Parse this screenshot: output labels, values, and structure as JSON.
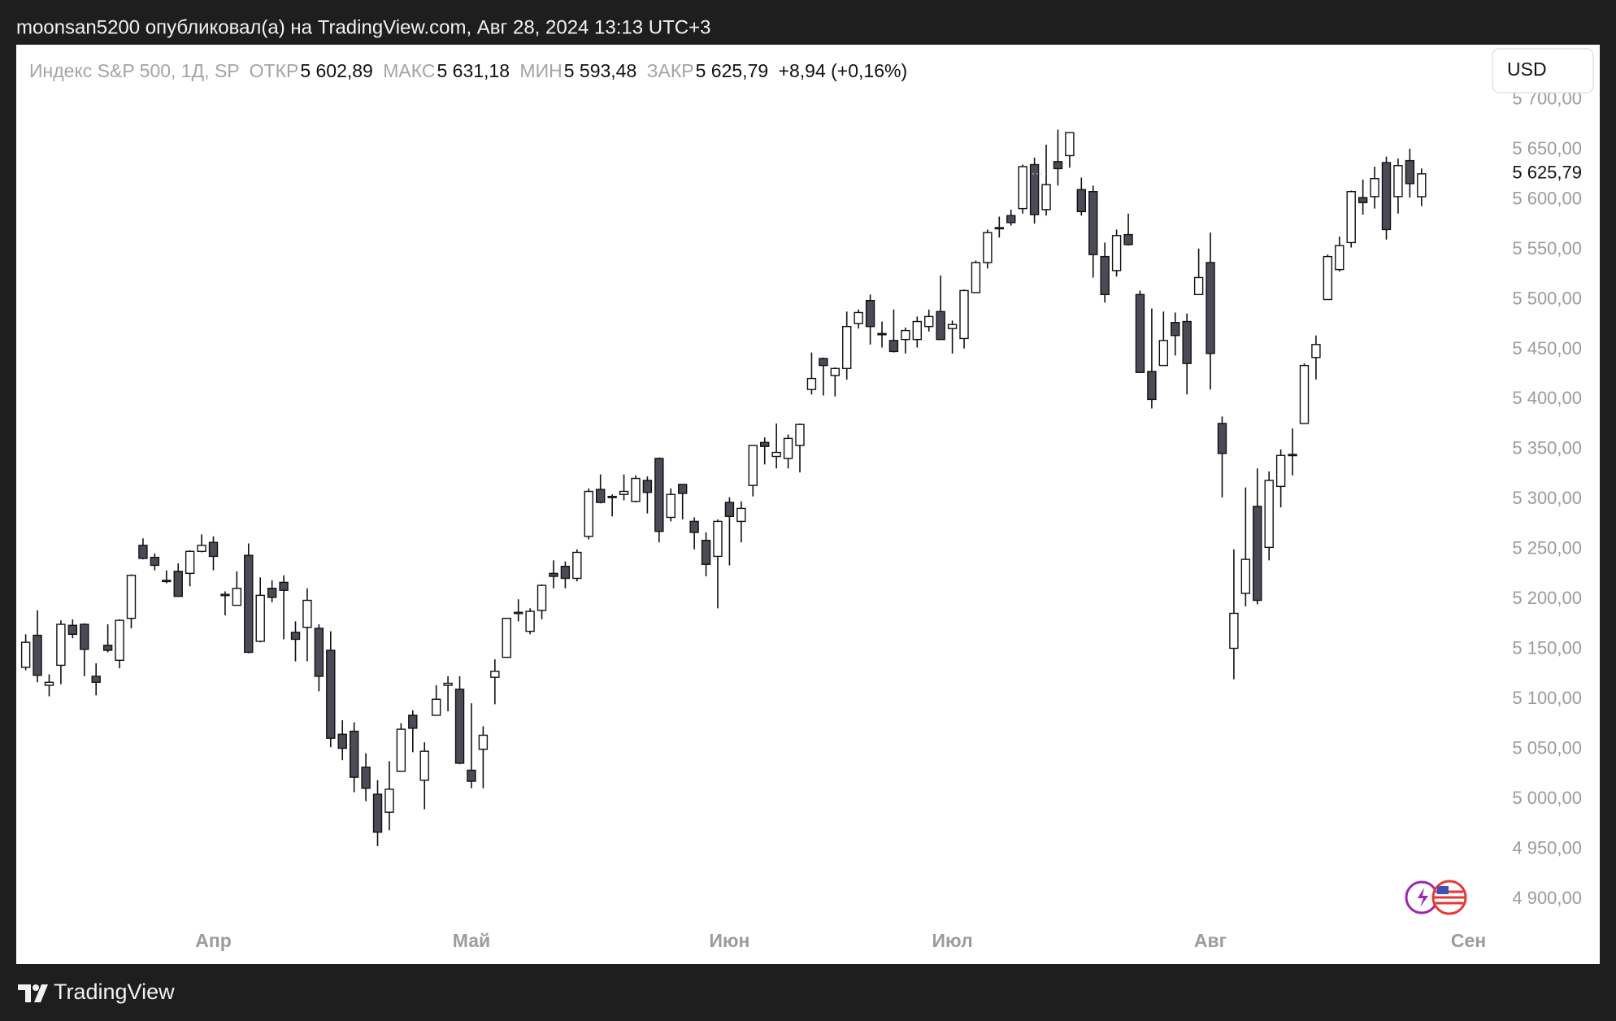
{
  "header": {
    "publisher": "moonsan5200 опубликовал(а) на TradingView.com, Авг 28, 2024 13:13 UTC+3"
  },
  "legend": {
    "symbol": "Индекс S&P 500, 1Д, SP",
    "open_label": "ОТКР",
    "open": "5 602,89",
    "high_label": "МАКС",
    "high": "5 631,18",
    "low_label": "МИН",
    "low": "5 593,48",
    "close_label": "ЗАКР",
    "close": "5 625,79",
    "change": "+8,94 (+0,16%)"
  },
  "currency": "USD",
  "brand": "TradingView",
  "chart_data": {
    "type": "candlestick",
    "up_color": "#ffffff",
    "down_color": "#4b4b57",
    "edge_color": "#111111",
    "ylim": [
      4835,
      5755
    ],
    "yticks": [
      {
        "value": 4900,
        "label": "4 900,00"
      },
      {
        "value": 4950,
        "label": "4 950,00"
      },
      {
        "value": 5000,
        "label": "5 000,00"
      },
      {
        "value": 5050,
        "label": "5 050,00"
      },
      {
        "value": 5100,
        "label": "5 100,00"
      },
      {
        "value": 5150,
        "label": "5 150,00"
      },
      {
        "value": 5200,
        "label": "5 200,00"
      },
      {
        "value": 5250,
        "label": "5 250,00"
      },
      {
        "value": 5300,
        "label": "5 300,00"
      },
      {
        "value": 5350,
        "label": "5 350,00"
      },
      {
        "value": 5400,
        "label": "5 400,00"
      },
      {
        "value": 5450,
        "label": "5 450,00"
      },
      {
        "value": 5500,
        "label": "5 500,00"
      },
      {
        "value": 5550,
        "label": "5 550,00"
      },
      {
        "value": 5600,
        "label": "5 600,00"
      },
      {
        "value": 5650,
        "label": "5 650,00"
      },
      {
        "value": 5700,
        "label": "5 700,00"
      }
    ],
    "price_line": {
      "value": 5625.79,
      "label": "5 625,79"
    },
    "categories": [
      null,
      null,
      null,
      null,
      null,
      null,
      null,
      null,
      null,
      null,
      null,
      null,
      null,
      null,
      null,
      null,
      "Апр",
      null,
      null,
      null,
      null,
      null,
      null,
      null,
      null,
      null,
      null,
      null,
      null,
      null,
      null,
      null,
      null,
      null,
      null,
      null,
      null,
      null,
      "Май",
      null,
      null,
      null,
      null,
      null,
      null,
      null,
      null,
      null,
      null,
      null,
      null,
      null,
      null,
      null,
      null,
      null,
      null,
      null,
      null,
      null,
      "Июн",
      null,
      null,
      null,
      null,
      null,
      null,
      null,
      null,
      null,
      null,
      null,
      null,
      null,
      null,
      null,
      null,
      null,
      null,
      "Июл",
      null,
      null,
      null,
      null,
      null,
      null,
      null,
      null,
      null,
      null,
      null,
      null,
      null,
      null,
      null,
      null,
      null,
      null,
      null,
      null,
      null,
      "Авг",
      null,
      null,
      null,
      null,
      null,
      null,
      null,
      null,
      null,
      null,
      null,
      null,
      null,
      null,
      null,
      null,
      null,
      null,
      null,
      null,
      null,
      "Сен"
    ],
    "open": [
      5132,
      5164,
      5114,
      5134,
      5174,
      5175,
      5123,
      5154,
      5139,
      5181,
      5254,
      5242,
      5219,
      5228,
      5226,
      5248,
      5257,
      5204,
      5194,
      5244,
      5158,
      5211,
      5217,
      5167,
      5172,
      5171,
      5149,
      5065,
      5068,
      5032,
      5005,
      4987,
      5028,
      5084,
      5019,
      5084,
      5114,
      5110,
      5029,
      5050,
      5122,
      5142,
      5187,
      5168,
      5189,
      5226,
      5233,
      5221,
      5263,
      5310,
      5303,
      5305,
      5298,
      5319,
      5341,
      5282,
      5315,
      5278,
      5259,
      5243,
      5297,
      5278,
      5314,
      5357,
      5343,
      5341,
      5354,
      5410,
      5441,
      5424,
      5431,
      5476,
      5499,
      5466,
      5459,
      5460,
      5460,
      5473,
      5488,
      5471,
      5461,
      5507,
      5537,
      5572,
      5584,
      5591,
      5635,
      5590,
      5638,
      5644,
      5610,
      5608,
      5543,
      5529,
      5565,
      5505,
      5428,
      5434,
      5477,
      5478,
      5505,
      5537,
      5376,
      5151,
      5206,
      5293,
      5252,
      5313,
      5345,
      5376,
      5442,
      5500,
      5530,
      5557,
      5602,
      5603,
      5637,
      5603,
      5639,
      5602.89,
      null,
      null,
      null,
      null
    ],
    "high": [
      5165,
      5189,
      5125,
      5179,
      5180,
      5176,
      5136,
      5175,
      5180,
      5225,
      5261,
      5246,
      5229,
      5236,
      5249,
      5265,
      5263,
      5208,
      5228,
      5256,
      5222,
      5219,
      5224,
      5178,
      5211,
      5175,
      5168,
      5079,
      5077,
      5046,
      5019,
      5038,
      5076,
      5089,
      5057,
      5114,
      5123,
      5123,
      5096,
      5073,
      5140,
      5181,
      5200,
      5191,
      5215,
      5239,
      5238,
      5250,
      5311,
      5325,
      5305,
      5325,
      5324,
      5323,
      5342,
      5311,
      5315,
      5282,
      5267,
      5280,
      5302,
      5298,
      5354,
      5362,
      5376,
      5365,
      5376,
      5447,
      5442,
      5432,
      5488,
      5490,
      5505,
      5478,
      5490,
      5472,
      5483,
      5490,
      5524,
      5479,
      5510,
      5539,
      5570,
      5583,
      5590,
      5635,
      5642,
      5655,
      5670,
      5667,
      5622,
      5614,
      5557,
      5570,
      5586,
      5509,
      5491,
      5488,
      5487,
      5486,
      5551,
      5567,
      5383,
      5250,
      5312,
      5331,
      5328,
      5350,
      5371,
      5436,
      5464,
      5545,
      5563,
      5609,
      5620,
      5633,
      5643,
      5641,
      5651,
      5631.18,
      null,
      null,
      null,
      null
    ],
    "low": [
      5129,
      5117,
      5103,
      5115,
      5161,
      5123,
      5104,
      5147,
      5131,
      5171,
      5240,
      5229,
      5216,
      5203,
      5213,
      5247,
      5229,
      5184,
      5194,
      5146,
      5157,
      5197,
      5160,
      5138,
      5138,
      5108,
      5052,
      5039,
      5007,
      4998,
      4953,
      4969,
      5028,
      5047,
      4990,
      5084,
      5088,
      5035,
      5011,
      5011,
      5095,
      5142,
      5178,
      5165,
      5180,
      5211,
      5211,
      5218,
      5260,
      5296,
      5283,
      5299,
      5297,
      5286,
      5257,
      5278,
      5280,
      5250,
      5223,
      5191,
      5234,
      5257,
      5303,
      5335,
      5331,
      5331,
      5327,
      5405,
      5404,
      5403,
      5420,
      5471,
      5455,
      5452,
      5447,
      5446,
      5452,
      5468,
      5460,
      5446,
      5451,
      5507,
      5531,
      5562,
      5574,
      5586,
      5576,
      5584,
      5614,
      5632,
      5584,
      5522,
      5497,
      5523,
      5554,
      5427,
      5391,
      5434,
      5444,
      5405,
      5505,
      5410,
      5302,
      5120,
      5193,
      5195,
      5239,
      5292,
      5324,
      5376,
      5420,
      5500,
      5528,
      5552,
      5585,
      5591,
      5560,
      5586,
      5602,
      5593.48,
      null,
      null,
      null,
      null
    ],
    "close": [
      5157,
      5124,
      5117,
      5175,
      5165,
      5150,
      5117,
      5149,
      5179,
      5224,
      5241,
      5234,
      5218,
      5203,
      5248,
      5254,
      5243,
      5205,
      5211,
      5147,
      5204,
      5202,
      5209,
      5160,
      5199,
      5123,
      5061,
      5051,
      5022,
      5011,
      4967,
      5010,
      5070,
      5071,
      5048,
      5100,
      5116,
      5036,
      5018,
      5064,
      5128,
      5181,
      5187,
      5188,
      5214,
      5223,
      5221,
      5247,
      5308,
      5297,
      5303,
      5308,
      5321,
      5307,
      5268,
      5305,
      5306,
      5267,
      5235,
      5278,
      5283,
      5291,
      5354,
      5353,
      5347,
      5361,
      5375,
      5421,
      5434,
      5431,
      5473,
      5487,
      5473,
      5465,
      5448,
      5469,
      5478,
      5483,
      5460,
      5475,
      5509,
      5537,
      5567,
      5572,
      5577,
      5633,
      5585,
      5615,
      5631,
      5667,
      5588,
      5545,
      5505,
      5564,
      5555,
      5427,
      5400,
      5459,
      5464,
      5436,
      5522,
      5446,
      5346,
      5186,
      5240,
      5199,
      5319,
      5344,
      5344,
      5434,
      5455,
      5543,
      5554,
      5608,
      5597,
      5621,
      5570,
      5634,
      5616,
      5625.79,
      null,
      null,
      null,
      null
    ]
  }
}
